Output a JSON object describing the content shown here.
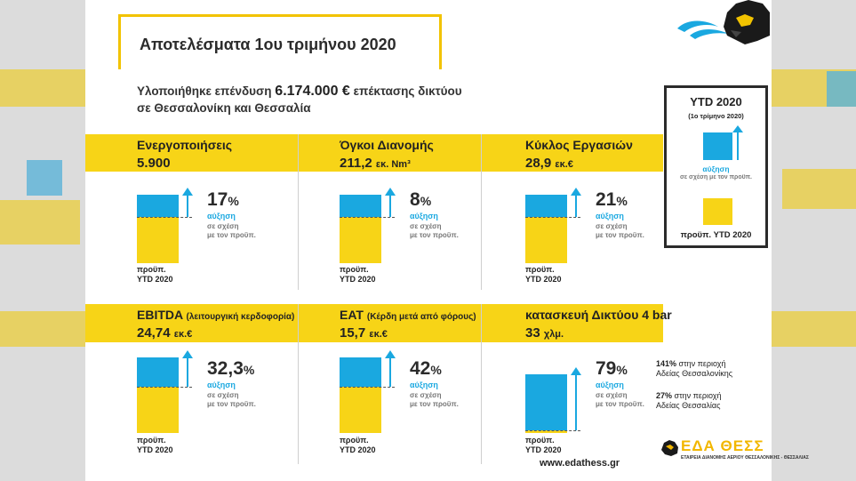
{
  "header": {
    "title": "Αποτελέσματα 1ου τριμήνου 2020"
  },
  "intro": {
    "line1_prefix": "Υλοποιήθηκε επένδυση",
    "amount": "6.174.000 €",
    "line1_suffix": "επέκτασης δικτύου",
    "line2": "σε Θεσσαλονίκη και Θεσσαλία"
  },
  "panels": [
    {
      "label": "Ενεργοποιήσεις",
      "label_note": "",
      "value": "5.900",
      "unit": "",
      "pct_num": "17",
      "increase_fraction": 0.17
    },
    {
      "label": "Όγκοι Διανομής",
      "label_note": "",
      "value": "211,2",
      "unit": "εκ. Nm³",
      "pct_num": "8",
      "increase_fraction": 0.08
    },
    {
      "label": "Κύκλος Εργασιών",
      "label_note": "",
      "value": "28,9",
      "unit": "εκ.€",
      "pct_num": "21",
      "increase_fraction": 0.21
    },
    {
      "label": "EBITDA",
      "label_note": "(λειτουργική κερδοφορία)",
      "value": "24,74",
      "unit": "εκ.€",
      "pct_num": "32,3",
      "increase_fraction": 0.323
    },
    {
      "label": "EAT",
      "label_note": "(Κέρδη μετά από φόρους)",
      "value": "15,7",
      "unit": "εκ.€",
      "pct_num": "42",
      "increase_fraction": 0.42
    },
    {
      "label": "κατασκευή Δικτύου 4 bar",
      "label_note": "",
      "value": "33",
      "unit": "χλμ.",
      "pct_num": "79",
      "increase_fraction": 0.79
    }
  ],
  "common": {
    "pct_sign": "%",
    "increase": "αύξηση",
    "compare_line1": "σε σχέση",
    "compare_line2": "με τον προϋπ.",
    "base_line1": "προϋπ.",
    "base_line2": "YTD 2020"
  },
  "legend": {
    "title": "YTD 2020",
    "subtitle": "(1ο τρίμηνο 2020)",
    "increase": "αύξηση",
    "compare": "σε σχέση με τον προϋπ.",
    "base": "προϋπ. YTD 2020"
  },
  "network_notes": [
    {
      "pct": "141%",
      "line1": "στην περιοχή",
      "line2": "Αδείας Θεσσαλονίκης"
    },
    {
      "pct": "27%",
      "line1": "στην περιοχή",
      "line2": "Αδείας Θεσσαλίας"
    }
  ],
  "footer": {
    "website": "www.edathess.gr",
    "logo_text": "ΕΔΑ ΘΕΣΣ",
    "logo_tagline": "ΕΤΑΙΡΕΙΑ ΔΙΑΝΟΜΗΣ ΑΕΡΙΟΥ ΘΕΣΣΑΛΟΝΙΚΗΣ - ΘΕΣΣΑΛΙΑΣ"
  },
  "colors": {
    "yellow": "#f7d417",
    "blue": "#1aa8e0",
    "frame": "#f2c300"
  },
  "icons": [
    "lion-logo-icon",
    "gas-flame-icon",
    "up-arrow-icon"
  ]
}
